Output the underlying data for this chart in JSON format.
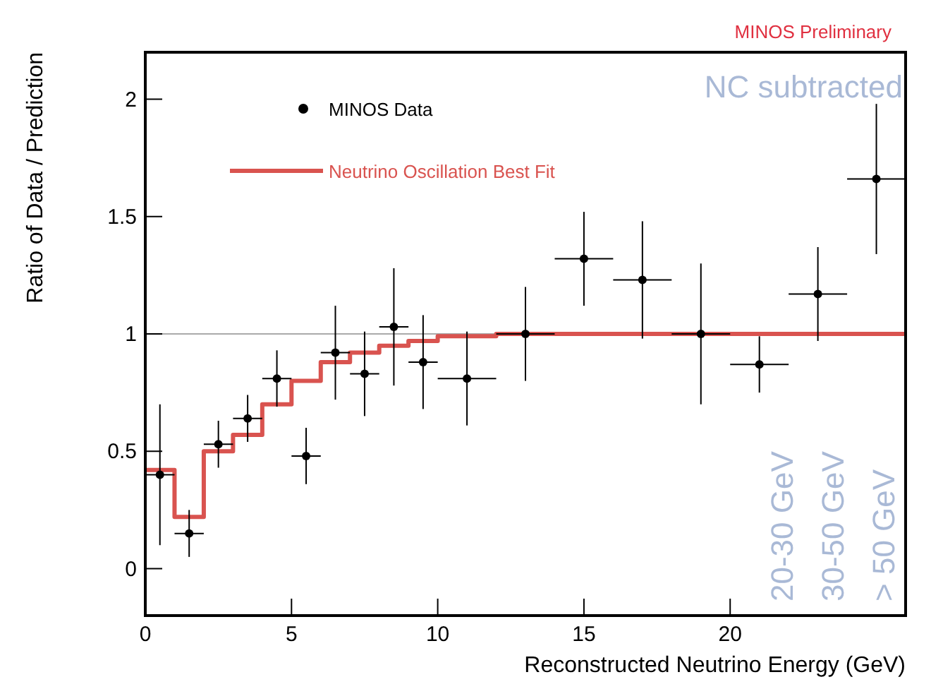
{
  "chart_data": {
    "type": "scatter",
    "xlabel": "Reconstructed Neutrino Energy (GeV)",
    "ylabel": "Ratio of Data / Prediction",
    "xlim": [
      0,
      26
    ],
    "ylim": [
      -0.2,
      2.2
    ],
    "xticks": [
      0,
      5,
      10,
      15,
      20
    ],
    "yticks": [
      0,
      0.5,
      1,
      1.5,
      2
    ],
    "legend": "top left",
    "series": [
      {
        "name": "MINOS Data",
        "marker": "circle",
        "color": "#000000",
        "x": [
          0.5,
          1.5,
          2.5,
          3.5,
          4.5,
          5.5,
          6.5,
          7.5,
          8.5,
          9.5,
          11,
          13,
          15,
          17,
          19,
          21,
          23,
          25
        ],
        "values": [
          0.4,
          0.15,
          0.53,
          0.64,
          0.81,
          0.48,
          0.92,
          0.83,
          1.03,
          0.88,
          0.81,
          1.0,
          1.32,
          1.23,
          1.0,
          0.87,
          1.17,
          1.66
        ],
        "errors": [
          0.3,
          0.1,
          0.1,
          0.1,
          0.12,
          0.12,
          0.2,
          0.18,
          0.25,
          0.2,
          0.2,
          0.2,
          0.2,
          0.25,
          0.3,
          0.12,
          0.2,
          0.32
        ],
        "xerrors": [
          0.5,
          0.5,
          0.5,
          0.5,
          0.5,
          0.5,
          0.5,
          0.5,
          0.5,
          0.5,
          1,
          1,
          1,
          1,
          1,
          1,
          1,
          1
        ]
      },
      {
        "name": "Neutrino Oscillation Best Fit",
        "type": "step",
        "color": "#d9534f",
        "x": [
          0,
          1,
          2,
          3,
          4,
          5,
          6,
          7,
          8,
          9,
          10,
          12,
          14,
          16,
          18,
          20,
          22,
          24,
          26
        ],
        "values": [
          0.42,
          0.22,
          0.5,
          0.57,
          0.7,
          0.8,
          0.88,
          0.92,
          0.95,
          0.97,
          0.99,
          1.0,
          1.0,
          1.0,
          1.0,
          1.0,
          1.0,
          1.0,
          1.0
        ]
      }
    ],
    "ref_lines": [
      {
        "axis": "y",
        "value": 1,
        "color": "#aaaaaa"
      }
    ],
    "annotations": [
      "MINOS Preliminary",
      "NC subtracted",
      "20-30 GeV",
      "30-50 GeV",
      "> 50 GeV"
    ]
  }
}
